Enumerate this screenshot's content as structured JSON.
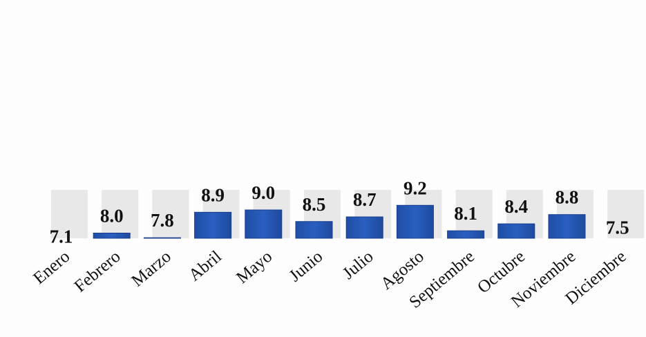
{
  "chart_data": {
    "type": "bar",
    "categories": [
      "Enero",
      "Febrero",
      "Marzo",
      "Abril",
      "Mayo",
      "Junio",
      "Julio",
      "Agosto",
      "Septiembre",
      "Octubre",
      "Noviembre",
      "Diciembre"
    ],
    "values": [
      7.1,
      8.0,
      7.8,
      8.9,
      9.0,
      8.5,
      8.7,
      9.2,
      8.1,
      8.4,
      8.8,
      7.5
    ],
    "value_labels": [
      "7.1",
      "8.0",
      "7.8",
      "8.9",
      "9.0",
      "8.5",
      "8.7",
      "9.2",
      "8.1",
      "8.4",
      "8.8",
      "7.5"
    ],
    "title": "",
    "xlabel": "",
    "ylabel": "",
    "ylim": [
      0,
      9.2
    ],
    "grid": false,
    "legend": "none",
    "bar_color": "#2356b4"
  }
}
